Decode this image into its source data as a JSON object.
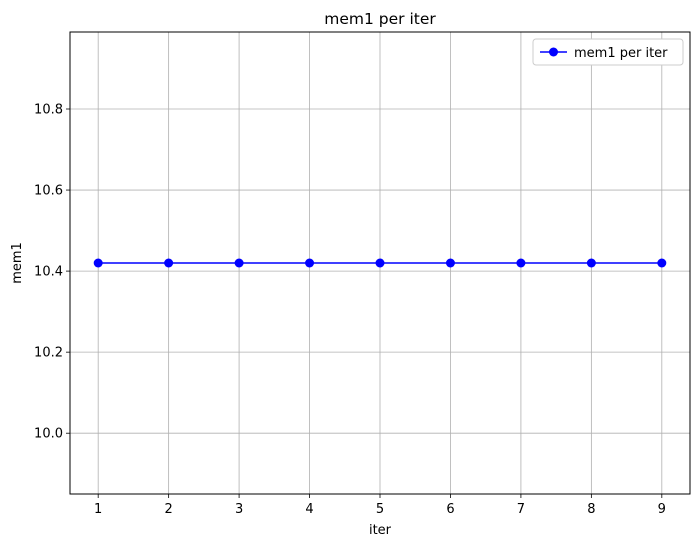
{
  "chart_data": {
    "type": "line",
    "title": "mem1 per iter",
    "xlabel": "iter",
    "ylabel": "mem1",
    "x": [
      1,
      2,
      3,
      4,
      5,
      6,
      7,
      8,
      9
    ],
    "xlim": [
      0.6,
      9.4
    ],
    "ylim": [
      9.85,
      10.99
    ],
    "x_ticks": [
      "1",
      "2",
      "3",
      "4",
      "5",
      "6",
      "7",
      "8",
      "9"
    ],
    "y_ticks": [
      "10.0",
      "10.2",
      "10.4",
      "10.6",
      "10.8"
    ],
    "grid": true,
    "legend_position": "top-right",
    "series": [
      {
        "name": "mem1 per iter",
        "color": "#0000ff",
        "marker": "circle",
        "values": [
          10.42,
          10.42,
          10.42,
          10.42,
          10.42,
          10.42,
          10.42,
          10.42,
          10.42
        ]
      }
    ]
  }
}
